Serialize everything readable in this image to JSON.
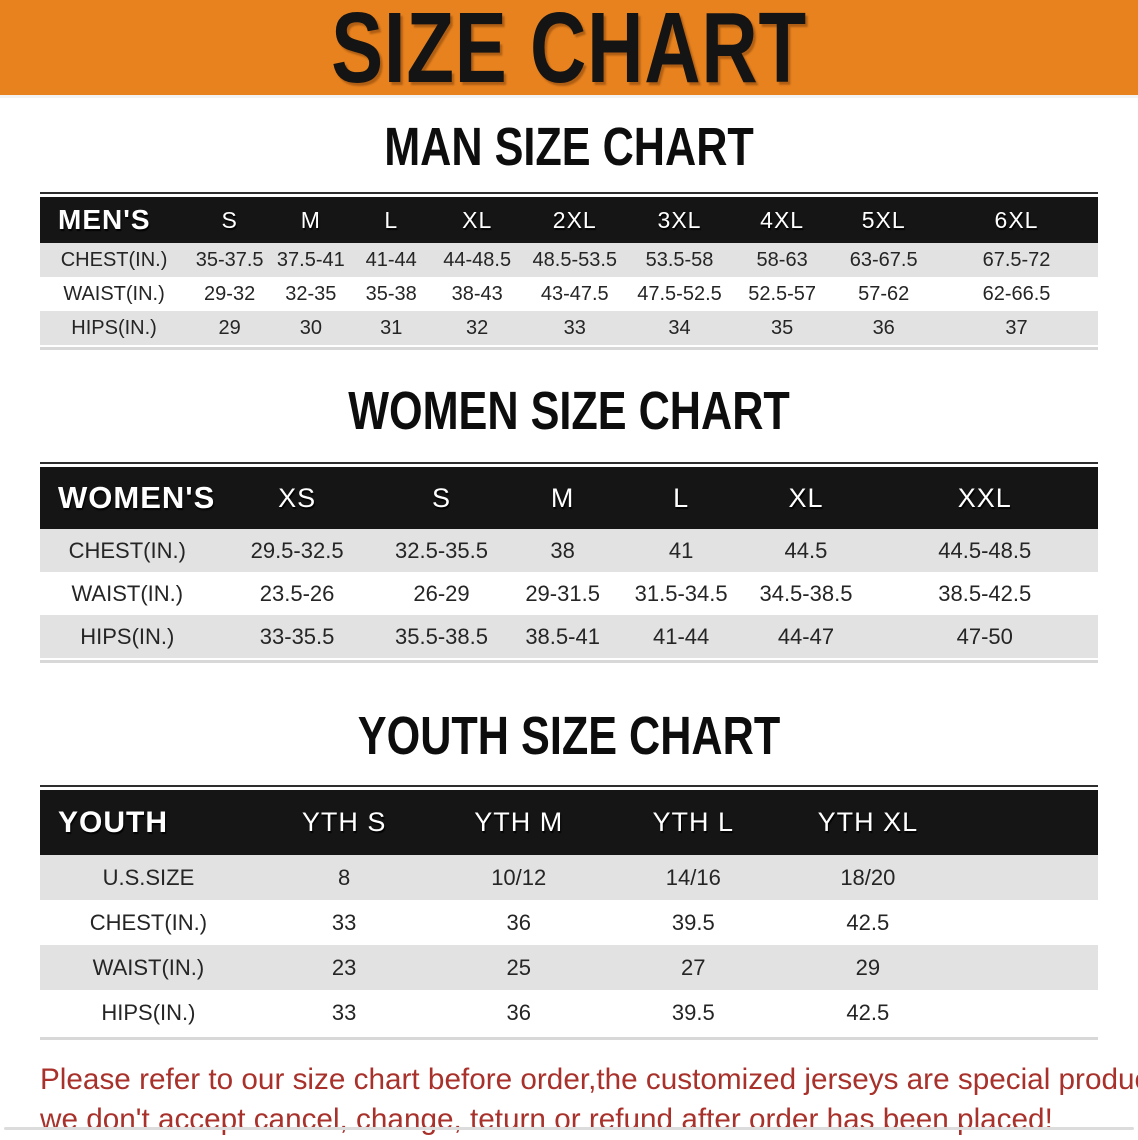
{
  "banner": {
    "title": "SIZE CHART"
  },
  "colors": {
    "banner_orange": "#E8821E",
    "header_bar_black": "#151515",
    "row_gray": "#E2E2E2",
    "note_red": "#A8322B"
  },
  "tables": [
    {
      "key": "men",
      "heading": "MAN SIZE CHART",
      "header": [
        "MEN'S",
        "S",
        "M",
        "L",
        "XL",
        "2XL",
        "3XL",
        "4XL",
        "5XL",
        "6XL"
      ],
      "rows": [
        {
          "label": "CHEST(IN.)",
          "values": [
            "35-37.5",
            "37.5-41",
            "41-44",
            "44-48.5",
            "48.5-53.5",
            "53.5-58",
            "58-63",
            "63-67.5",
            "67.5-72"
          ]
        },
        {
          "label": "WAIST(IN.)",
          "values": [
            "29-32",
            "32-35",
            "35-38",
            "38-43",
            "43-47.5",
            "47.5-52.5",
            "52.5-57",
            "57-62",
            "62-66.5"
          ]
        },
        {
          "label": "HIPS(IN.)",
          "values": [
            "29",
            "30",
            "31",
            "32",
            "33",
            "34",
            "35",
            "36",
            "37"
          ]
        }
      ]
    },
    {
      "key": "women",
      "heading": "WOMEN SIZE CHART",
      "header": [
        "WOMEN'S",
        "XS",
        "S",
        "M",
        "L",
        "XL",
        "XXL"
      ],
      "rows": [
        {
          "label": "CHEST(IN.)",
          "values": [
            "29.5-32.5",
            "32.5-35.5",
            "38",
            "41",
            "44.5",
            "44.5-48.5"
          ]
        },
        {
          "label": "WAIST(IN.)",
          "values": [
            "23.5-26",
            "26-29",
            "29-31.5",
            "31.5-34.5",
            "34.5-38.5",
            "38.5-42.5"
          ]
        },
        {
          "label": "HIPS(IN.)",
          "values": [
            "33-35.5",
            "35.5-38.5",
            "38.5-41",
            "41-44",
            "44-47",
            "47-50"
          ]
        }
      ]
    },
    {
      "key": "youth",
      "heading": "YOUTH SIZE CHART",
      "header": [
        "YOUTH",
        "YTH S",
        "YTH M",
        "YTH L",
        "YTH XL"
      ],
      "rows": [
        {
          "label": "U.S.SIZE",
          "values": [
            "8",
            "10/12",
            "14/16",
            "18/20"
          ]
        },
        {
          "label": "CHEST(IN.)",
          "values": [
            "33",
            "36",
            "39.5",
            "42.5"
          ]
        },
        {
          "label": "WAIST(IN.)",
          "values": [
            "23",
            "25",
            "27",
            "29"
          ]
        },
        {
          "label": "HIPS(IN.)",
          "values": [
            "33",
            "36",
            "39.5",
            "42.5"
          ]
        }
      ]
    }
  ],
  "footer": {
    "lines": [
      "Please refer to our size chart before order,the customized jerseys are special products,",
      "we don't accept cancel, change, teturn or refund after order has been placed!"
    ]
  }
}
